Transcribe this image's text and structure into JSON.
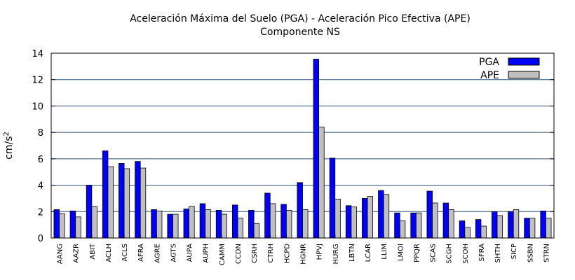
{
  "chart_data": {
    "type": "bar",
    "title_line1": "Aceleración Máxima del Suelo (PGA) -  Aceleración Pico Efectiva (APE)",
    "title_line2": "Componente NS",
    "ylabel_base": "cm/s",
    "ylabel_sup": "2",
    "xlabel": "",
    "ylim": [
      0,
      14
    ],
    "yticks": [
      0,
      2,
      4,
      6,
      8,
      10,
      12,
      14
    ],
    "grid": true,
    "legend_position": "top-right",
    "categories": [
      "AANG",
      "AAZR",
      "ABIT",
      "ACLH",
      "ACLS",
      "AFRA",
      "AGRE",
      "AGTS",
      "AUPA",
      "AUPH",
      "CAMM",
      "CCDN",
      "CSRH",
      "CTRH",
      "HCPD",
      "HGNR",
      "HPVJ",
      "HURG",
      "LBTN",
      "LCAR",
      "LLIM",
      "LMOI",
      "PPQR",
      "SCAS",
      "SCGH",
      "SCOH",
      "SFRA",
      "SHTH",
      "SICP",
      "SSBN",
      "STRN"
    ],
    "series": [
      {
        "name": "PGA",
        "color": "#0000ff",
        "values": [
          2.15,
          2.05,
          4.0,
          6.6,
          5.65,
          5.8,
          2.15,
          1.8,
          2.2,
          2.6,
          2.1,
          2.5,
          2.1,
          3.4,
          2.55,
          4.2,
          13.55,
          6.05,
          2.45,
          3.0,
          3.6,
          1.9,
          1.9,
          3.55,
          2.65,
          1.3,
          1.4,
          2.0,
          2.0,
          1.5,
          2.05
        ]
      },
      {
        "name": "APE",
        "color": "#c0c0c0",
        "values": [
          1.85,
          1.6,
          2.4,
          5.4,
          5.25,
          5.3,
          2.05,
          1.8,
          2.4,
          2.15,
          1.8,
          1.5,
          1.1,
          2.6,
          2.1,
          2.15,
          8.4,
          2.95,
          2.35,
          3.15,
          3.3,
          1.3,
          1.9,
          2.65,
          2.15,
          0.8,
          0.9,
          1.7,
          2.15,
          1.5,
          1.5
        ]
      }
    ]
  }
}
